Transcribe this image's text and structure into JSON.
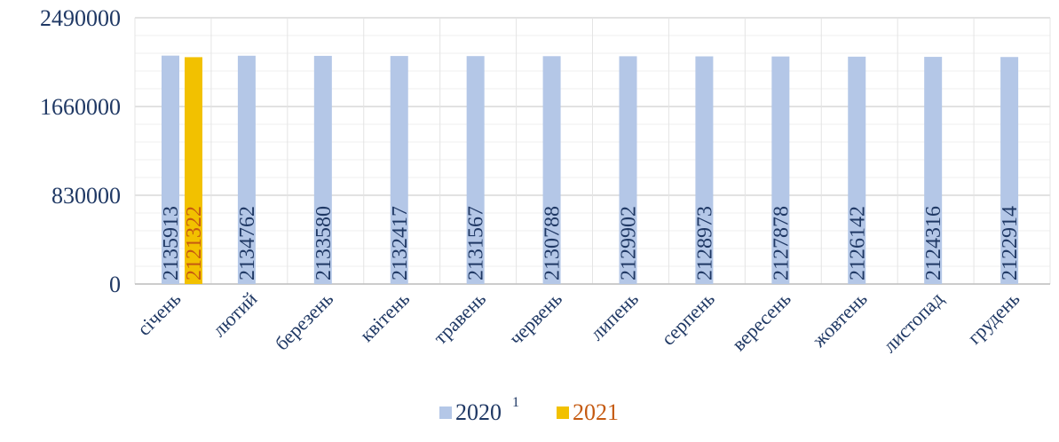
{
  "chart_data": {
    "type": "bar",
    "categories": [
      "січень",
      "лютий",
      "березень",
      "квітень",
      "травень",
      "червень",
      "липень",
      "серпень",
      "вересень",
      "жовтень",
      "листопад",
      "грудень"
    ],
    "series": [
      {
        "name": "2020",
        "superscript": "1",
        "color": "#B4C7E7",
        "label_color": "#1F3864",
        "values": [
          2135913,
          2134762,
          2133580,
          2132417,
          2131567,
          2130788,
          2129902,
          2128973,
          2127878,
          2126142,
          2124316,
          2122914
        ]
      },
      {
        "name": "2021",
        "color": "#F2C100",
        "label_color": "#C55A11",
        "values": [
          2121322,
          null,
          null,
          null,
          null,
          null,
          null,
          null,
          null,
          null,
          null,
          null
        ]
      }
    ],
    "y_ticks": [
      "0",
      "830000",
      "1660000",
      "2490000"
    ],
    "ylim": [
      0,
      2490000
    ],
    "grid": true,
    "legend_position": "bottom",
    "axis_color": "#1F3864",
    "grid_color": "#D9D9D9"
  }
}
